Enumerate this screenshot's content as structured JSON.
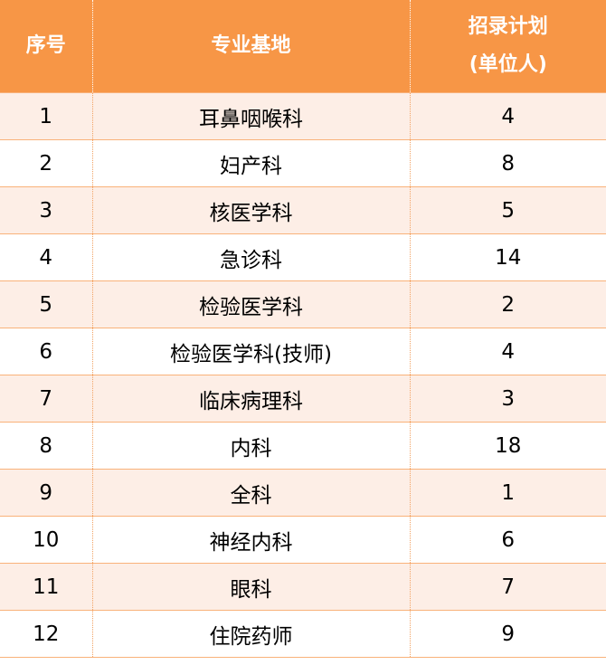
{
  "header": {
    "col_index": "序号",
    "col_major": "专业基地",
    "col_plan_line1": "招录计划",
    "col_plan_line2": "(单位人)"
  },
  "rows": [
    {
      "index": "1",
      "major": "耳鼻咽喉科",
      "plan": "4"
    },
    {
      "index": "2",
      "major": "妇产科",
      "plan": "8"
    },
    {
      "index": "3",
      "major": "核医学科",
      "plan": "5"
    },
    {
      "index": "4",
      "major": "急诊科",
      "plan": "14"
    },
    {
      "index": "5",
      "major": "检验医学科",
      "plan": "2"
    },
    {
      "index": "6",
      "major": "检验医学科(技师)",
      "plan": "4"
    },
    {
      "index": "7",
      "major": "临床病理科",
      "plan": "3"
    },
    {
      "index": "8",
      "major": "内科",
      "plan": "18"
    },
    {
      "index": "9",
      "major": "全科",
      "plan": "1"
    },
    {
      "index": "10",
      "major": "神经内科",
      "plan": "6"
    },
    {
      "index": "11",
      "major": "眼科",
      "plan": "7"
    },
    {
      "index": "12",
      "major": "住院药师",
      "plan": "9"
    }
  ],
  "colors": {
    "header_bg": "#f79646",
    "header_text": "#ffffff",
    "row_alt_bg": "#fdeee6",
    "border": "#f9b27a"
  }
}
